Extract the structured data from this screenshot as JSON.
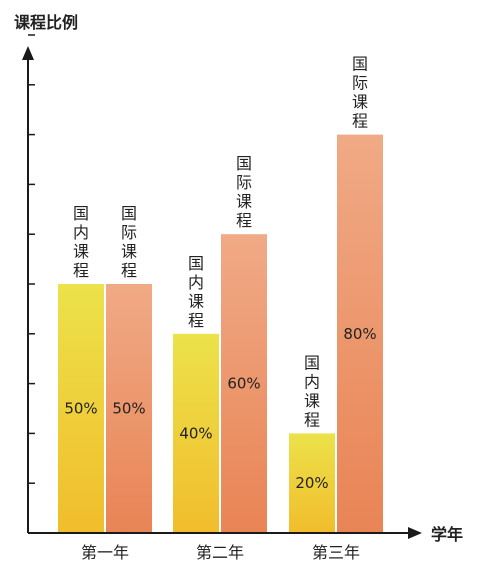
{
  "chart_data": {
    "type": "bar",
    "title": "",
    "ylabel": "课程比例",
    "xlabel": "学年",
    "categories": [
      "第一年",
      "第二年",
      "第三年"
    ],
    "series": [
      {
        "name": "国内课程",
        "values": [
          50,
          40,
          20
        ]
      },
      {
        "name": "国际课程",
        "values": [
          50,
          60,
          80
        ]
      }
    ],
    "value_labels": [
      [
        "50%",
        "40%",
        "20%"
      ],
      [
        "50%",
        "60%",
        "80%"
      ]
    ],
    "ylim": [
      0,
      100
    ],
    "y_ticks": 10,
    "grid": false,
    "legend": "none",
    "colors": {
      "domestic_top": "#ece24a",
      "domestic_bottom": "#f1bd2c",
      "international_top": "#f0aa86",
      "international_bottom": "#e98455",
      "axis": "#1a1a1a"
    }
  }
}
